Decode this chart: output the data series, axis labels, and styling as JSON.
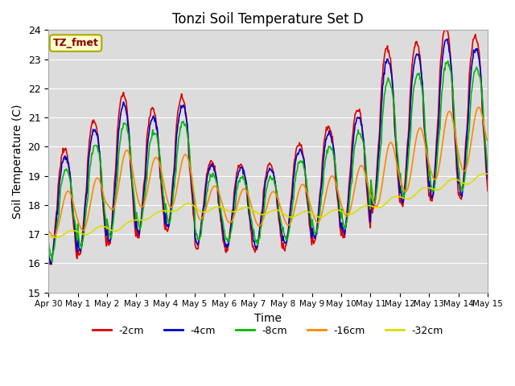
{
  "title": "Tonzi Soil Temperature Set D",
  "xlabel": "Time",
  "ylabel": "Soil Temperature (C)",
  "ylim": [
    15.0,
    24.0
  ],
  "yticks": [
    15.0,
    16.0,
    17.0,
    18.0,
    19.0,
    20.0,
    21.0,
    22.0,
    23.0,
    24.0
  ],
  "legend_labels": [
    "-2cm",
    "-4cm",
    "-8cm",
    "-16cm",
    "-32cm"
  ],
  "legend_colors": [
    "#dd0000",
    "#0000cc",
    "#00bb00",
    "#ff8800",
    "#dddd00"
  ],
  "annotation_text": "TZ_fmet",
  "annotation_bg": "#ffffcc",
  "annotation_border": "#aaaa00",
  "plot_bg": "#dcdcdc",
  "grid_color": "#ffffff",
  "x_tick_labels": [
    "Apr 30",
    "May 1",
    "May 2",
    "May 3",
    "May 4",
    "May 5",
    "May 6",
    "May 7",
    "May 8",
    "May 9",
    "May 10",
    "May 11",
    "May 12",
    "May 13",
    "May 14",
    "May 15"
  ],
  "n_days": 15,
  "ppd": 48
}
